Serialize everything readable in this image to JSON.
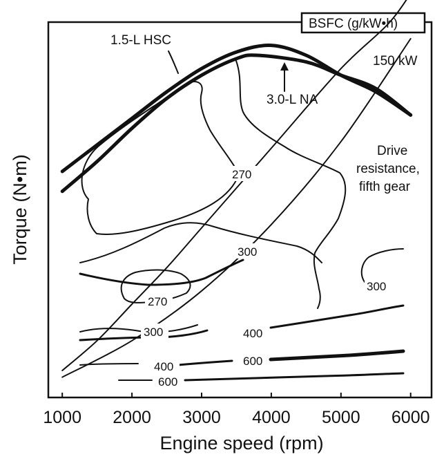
{
  "chart_data": {
    "type": "line",
    "title": "",
    "xlabel": "Engine speed (rpm)",
    "ylabel": "Torque (N•m)",
    "x_ticks": [
      "1000",
      "2000",
      "3000",
      "4000",
      "5000",
      "6000"
    ],
    "xlim": [
      800,
      6300
    ],
    "grid": false,
    "legend_box": "BSFC (g/kW•h)",
    "annotations": {
      "hsc": "1.5-L HSC",
      "na": "3.0-L NA",
      "power": "150 kW",
      "drive_line1": "Drive",
      "drive_line2": "resistance,",
      "drive_line3": "fifth gear"
    },
    "contour_labels": {
      "c270_upper": "270",
      "c270_lower": "270",
      "c300_mid": "300",
      "c300_right": "300",
      "c300_low": "300",
      "c400_right": "400",
      "c400_low": "400",
      "c600_right": "600",
      "c600_low": "600"
    },
    "torque_units": "relative 0-100 (y axis has no printed ticks)",
    "series": [
      {
        "name": "1.5-L HSC",
        "x": [
          1000,
          1500,
          2000,
          2500,
          3000,
          3500,
          4000,
          4500,
          5000,
          5500,
          6000
        ],
        "y": [
          65,
          73,
          81,
          89,
          96,
          101,
          103,
          100,
          94,
          89,
          82
        ]
      },
      {
        "name": "3.0-L NA",
        "x": [
          1000,
          1500,
          2000,
          2500,
          3000,
          3500,
          3800,
          4500,
          5000,
          5500,
          6000
        ],
        "y": [
          59,
          68,
          78,
          87,
          94,
          99,
          100,
          98,
          94,
          90,
          82
        ]
      },
      {
        "name": "",
        "x": [
          1000,
          2000,
          3000,
          4000,
          5000,
          6000
        ],
        "y": [
          3,
          14,
          29,
          49,
          74,
          105
        ]
      },
      {
        "name": "",
        "x": [
          1000,
          1500,
          2000,
          2500,
          3000,
          4000,
          5000,
          5700,
          6100
        ],
        "y": [
          5,
          14,
          25,
          36,
          48,
          72,
          96,
          110,
          122
        ]
      }
    ]
  }
}
